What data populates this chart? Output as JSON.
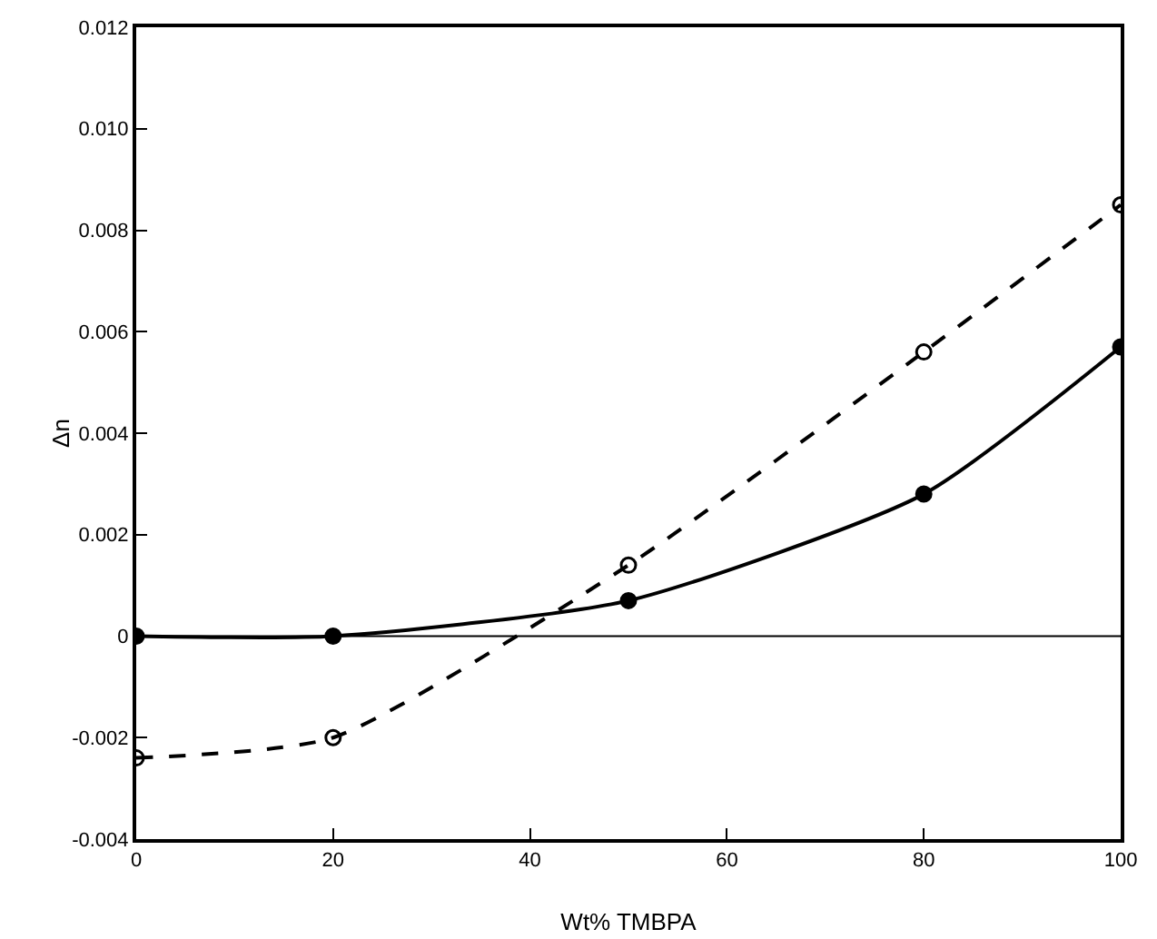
{
  "chart_data": {
    "type": "line",
    "xlabel": "Wt% TMBPA",
    "ylabel": "Δn",
    "x": [
      0,
      20,
      50,
      80,
      100
    ],
    "series": [
      {
        "color": "#000000",
        "values": [
          0,
          0,
          0.0007,
          0.0028,
          0.0057
        ],
        "line_style": "solid",
        "marker": "circle"
      },
      {
        "color": "#000000",
        "values": [
          -0.0024,
          -0.002,
          0.0014,
          0.0056,
          0.0085
        ],
        "line_style": "dashed",
        "marker": "circle-open"
      }
    ],
    "xlim": [
      0,
      100
    ],
    "xticks": [
      0,
      20,
      40,
      60,
      80,
      100
    ],
    "ylim": [
      -0.004,
      0.012
    ],
    "yticks": [
      -0.004,
      -0.002,
      0,
      0.002,
      0.004,
      0.006,
      0.008,
      {
        "value": 0.01,
        "label": "0.010"
      },
      0.012
    ],
    "ref_lines": [
      {
        "axis": "y",
        "value": 0,
        "color": "#000000"
      }
    ],
    "grid": false,
    "legend": false
  }
}
